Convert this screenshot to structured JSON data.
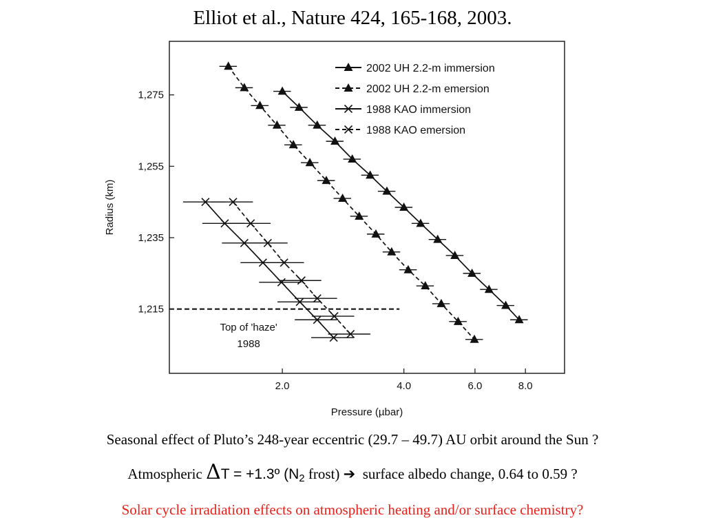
{
  "slide": {
    "title": "Elliot et al., Nature 424, 165-168, 2003.",
    "caption1": "Seasonal effect of Pluto’s 248-year eccentric (29.7 – 49.7) AU orbit around the Sun ?",
    "caption2": {
      "prefix": "Atmospheric ",
      "delta": "Δ",
      "eq": "T = +1.3º (N",
      "sub": "2",
      "frost": " frost)",
      "arrow": "➔",
      "rest": "surface albedo change, 0.64 to 0.59 ?"
    },
    "caption3": "Solar cycle irradiation effects on atmospheric heating and/or surface chemistry?",
    "colors": {
      "caption3": "#e8201a",
      "series": "#111111"
    }
  },
  "chart_data": {
    "type": "scatter",
    "xlabel": "Pressure (µbar)",
    "ylabel": "Radius (km)",
    "x_scale": "log",
    "xlim": [
      1.05,
      10.0
    ],
    "ylim": [
      1197,
      1290
    ],
    "x_ticks": [
      {
        "value": 2.0,
        "label": "2.0"
      },
      {
        "value": 4.0,
        "label": "4.0"
      },
      {
        "value": 6.0,
        "label": "6.0"
      },
      {
        "value": 8.0,
        "label": "8.0"
      }
    ],
    "y_ticks": [
      {
        "value": 1275,
        "label": "1,275"
      },
      {
        "value": 1255,
        "label": "1,255"
      },
      {
        "value": 1235,
        "label": "1,235"
      },
      {
        "value": 1215,
        "label": "1,215"
      }
    ],
    "grid": false,
    "legend_position": "top-right",
    "series": [
      {
        "name": "2002 UH 2.2-m immersion",
        "marker": "triangle",
        "line": "solid",
        "xerr": 0.05,
        "y": [
          1276,
          1271.5,
          1266.5,
          1262,
          1257,
          1252.5,
          1248,
          1243.5,
          1239,
          1234.5,
          1230,
          1225,
          1220.5,
          1216,
          1212
        ],
        "x": [
          2.0,
          2.2,
          2.44,
          2.7,
          2.98,
          3.3,
          3.63,
          4.0,
          4.4,
          4.85,
          5.35,
          5.9,
          6.5,
          7.15,
          7.72
        ]
      },
      {
        "name": "2002 UH 2.2-m emersion",
        "marker": "triangle",
        "line": "dashed",
        "xerr": 0.05,
        "y": [
          1283,
          1277,
          1272,
          1266.5,
          1261,
          1256,
          1251,
          1246,
          1241,
          1236,
          1231,
          1226,
          1221.5,
          1216.5,
          1211.5,
          1206.5
        ],
        "x": [
          1.47,
          1.61,
          1.76,
          1.94,
          2.13,
          2.34,
          2.57,
          2.82,
          3.1,
          3.41,
          3.73,
          4.1,
          4.52,
          4.95,
          5.45,
          5.98
        ]
      },
      {
        "name": "1988 KAO immersion",
        "marker": "x",
        "line": "solid",
        "xerr": 0.12,
        "y": [
          1245,
          1239,
          1233.5,
          1228,
          1222.5,
          1217,
          1212,
          1207
        ],
        "x": [
          1.29,
          1.44,
          1.61,
          1.79,
          1.99,
          2.21,
          2.44,
          2.68
        ]
      },
      {
        "name": "1988 KAO emersion",
        "marker": "x",
        "line": "dashed",
        "xerr": 0.12,
        "y": [
          1245,
          1239,
          1233.5,
          1228,
          1223,
          1218,
          1213,
          1208
        ],
        "x": [
          1.51,
          1.67,
          1.84,
          2.02,
          2.23,
          2.44,
          2.69,
          2.95
        ]
      }
    ],
    "annotations": [
      {
        "kind": "hline",
        "y": 1215,
        "x_from": 1.05,
        "x_to": 3.9,
        "style": "dashed"
      },
      {
        "kind": "text",
        "lines": [
          "Top of 'haze'",
          "1988"
        ],
        "x": 1.65,
        "y": 1209
      }
    ]
  }
}
